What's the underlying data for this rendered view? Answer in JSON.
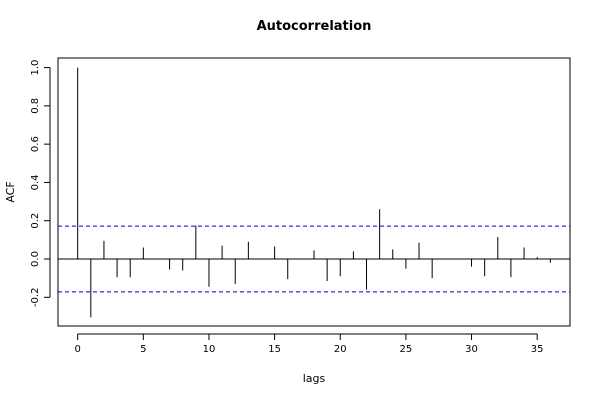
{
  "chart_data": {
    "type": "bar",
    "title": "Autocorrelation",
    "xlabel": "lags",
    "ylabel": "ACF",
    "xlim": [
      -1.5,
      37.5
    ],
    "ylim": [
      -0.35,
      1.05
    ],
    "x_ticks": [
      0,
      5,
      10,
      15,
      20,
      25,
      30,
      35
    ],
    "y_ticks": [
      -0.2,
      0.0,
      0.2,
      0.4,
      0.6,
      0.8,
      1.0
    ],
    "y_tick_labels": [
      "-0.2",
      "0.0",
      "0.2",
      "0.4",
      "0.6",
      "0.8",
      "1.0"
    ],
    "x": [
      0,
      1,
      2,
      3,
      4,
      5,
      6,
      7,
      8,
      9,
      10,
      11,
      12,
      13,
      14,
      15,
      16,
      17,
      18,
      19,
      20,
      21,
      22,
      23,
      24,
      25,
      26,
      27,
      28,
      29,
      30,
      31,
      32,
      33,
      34,
      35,
      36
    ],
    "values": [
      1.0,
      -0.305,
      0.095,
      -0.095,
      -0.095,
      0.06,
      0.0,
      -0.055,
      -0.06,
      0.175,
      -0.145,
      0.07,
      -0.13,
      0.09,
      0.0,
      0.065,
      -0.105,
      0.0,
      0.045,
      -0.115,
      -0.09,
      0.04,
      -0.16,
      0.26,
      0.05,
      -0.05,
      0.085,
      -0.1,
      0.0,
      0.0,
      -0.04,
      -0.09,
      0.115,
      -0.095,
      0.06,
      0.01,
      -0.02
    ],
    "confidence_band": 0.172,
    "line_color": "#000000",
    "band_color": "#0000cc",
    "grid": false,
    "legend": "none"
  }
}
